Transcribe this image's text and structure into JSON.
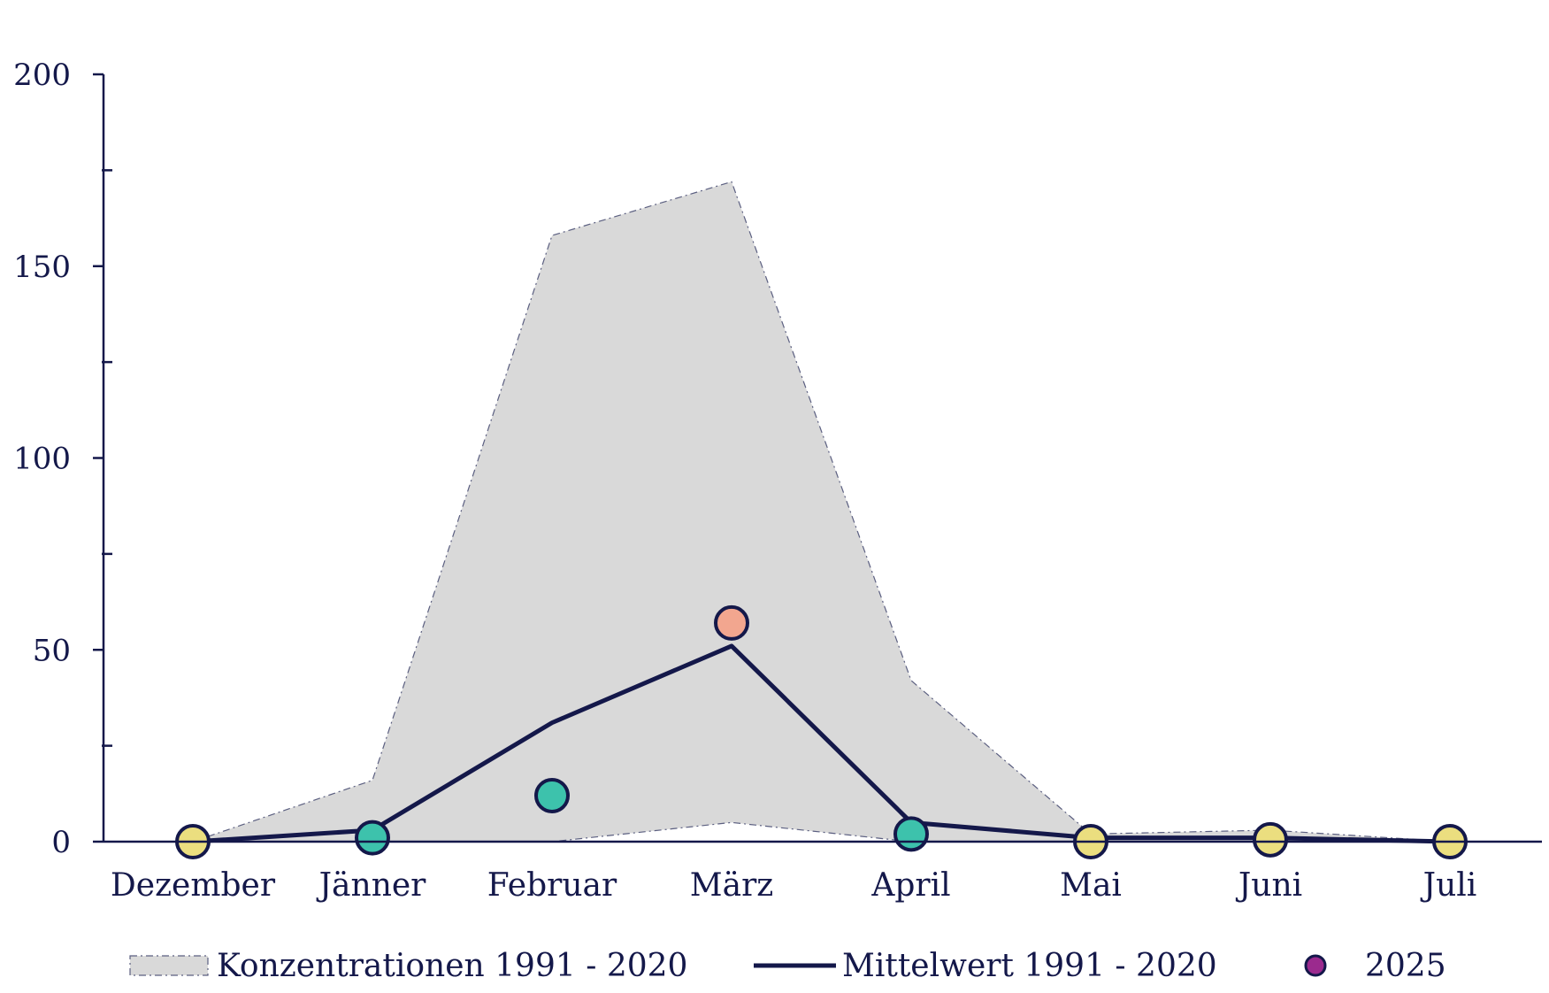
{
  "chart_data": {
    "type": "line",
    "categories": [
      "Dezember",
      "Jänner",
      "Februar",
      "März",
      "April",
      "Mai",
      "Juni",
      "Juli"
    ],
    "ylim": [
      0,
      200
    ],
    "yticks": [
      "0",
      "50",
      "100",
      "150",
      "200"
    ],
    "grid": false,
    "legend_position": "bottom",
    "series": [
      {
        "name": "Konzentrationen 1991 - 2020",
        "kind": "band",
        "upper": [
          0,
          16,
          158,
          172,
          42,
          2,
          3,
          0
        ],
        "lower": [
          0,
          0,
          0,
          5,
          0,
          0,
          0,
          0
        ],
        "color": "#d9d9d9"
      },
      {
        "name": "Mittelwert 1991 - 2020",
        "kind": "line",
        "values": [
          0,
          3,
          31,
          51,
          5,
          1,
          1,
          0
        ],
        "color": "#14184a"
      },
      {
        "name": "2025",
        "kind": "points",
        "values": [
          0,
          1,
          12,
          57,
          2,
          0,
          0.5,
          0
        ],
        "point_colors": [
          "#ebde7f",
          "#3dc2ac",
          "#3dc2ac",
          "#f2a68f",
          "#3dc2ac",
          "#ebde7f",
          "#ebde7f",
          "#ebde7f"
        ],
        "legend_color": "#9b2a8e"
      }
    ]
  },
  "legend": {
    "items": [
      {
        "label": "Konzentrationen 1991 - 2020"
      },
      {
        "label": "Mittelwert 1991 - 2020"
      },
      {
        "label": "2025"
      }
    ]
  }
}
